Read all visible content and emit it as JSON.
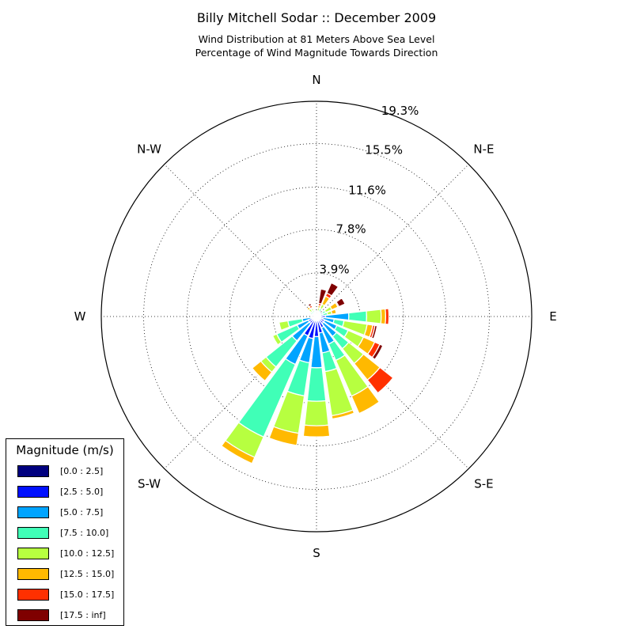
{
  "chart_data": {
    "type": "windrose",
    "title": "Billy Mitchell Sodar :: December 2009",
    "subtitle_line1": "Wind Distribution at 81 Meters Above Sea Level",
    "subtitle_line2": "Percentage of Wind Magnitude Towards Direction",
    "direction_labels": {
      "N": "N",
      "NE": "N-E",
      "E": "E",
      "SE": "S-E",
      "S": "S",
      "SW": "S-W",
      "W": "W",
      "NW": "N-W"
    },
    "radial_ticks": [
      "3.9%",
      "7.8%",
      "11.6%",
      "15.5%",
      "19.3%"
    ],
    "radial_values": [
      3.9,
      7.8,
      11.6,
      15.5,
      19.3
    ],
    "rmax": 19.3,
    "legend": {
      "title": "Magnitude (m/s)",
      "entries": [
        "[0.0 : 2.5]",
        "[2.5 : 5.0]",
        "[5.0 : 7.5]",
        "[7.5 : 10.0]",
        "[10.0 : 12.5]",
        "[12.5 : 15.0]",
        "[15.0 : 17.5]",
        "[17.5 : inf]"
      ],
      "colors": [
        "#00007f",
        "#0010ff",
        "#00a4ff",
        "#40ffb7",
        "#b7ff40",
        "#ffb900",
        "#ff3000",
        "#7f0000"
      ]
    },
    "sector_width_deg": 15,
    "sectors": [
      {
        "dir": 0,
        "pct": [
          0.1,
          0.1
        ]
      },
      {
        "dir": 15,
        "pct": [
          0.1,
          0.1,
          0.2,
          0.1,
          0.3,
          0.2,
          0.2,
          1.3
        ]
      },
      {
        "dir": 30,
        "pct": [
          0.1,
          0.1,
          0.3,
          0.3,
          0.4,
          0.8,
          0.3,
          1.0
        ]
      },
      {
        "dir": 45,
        "pct": [
          0.1,
          0.1,
          0.2,
          0.1
        ]
      },
      {
        "dir": 60,
        "pct": [
          0.1,
          0.2,
          0.3,
          0.3,
          0.6,
          0.6,
          0.1,
          0.6
        ]
      },
      {
        "dir": 75,
        "pct": [
          0.1,
          0.2,
          0.3,
          0.4,
          0.4,
          0.4
        ]
      },
      {
        "dir": 90,
        "pct": [
          0.3,
          0.5,
          2.1,
          1.6,
          1.3,
          0.4,
          0.3
        ]
      },
      {
        "dir": 105,
        "pct": [
          0.2,
          0.4,
          1.0,
          0.9,
          2.1,
          0.5,
          0.2,
          0.2
        ]
      },
      {
        "dir": 120,
        "pct": [
          0.3,
          0.5,
          1.2,
          1.1,
          1.5,
          1.1,
          0.5,
          0.3
        ]
      },
      {
        "dir": 135,
        "pct": [
          0.3,
          0.5,
          1.5,
          1.4,
          1.7,
          1.9,
          1.5
        ]
      },
      {
        "dir": 150,
        "pct": [
          0.3,
          0.8,
          1.6,
          1.6,
          3.5,
          1.7
        ]
      },
      {
        "dir": 165,
        "pct": [
          0.3,
          1.2,
          1.8,
          1.7,
          4.0,
          0.3
        ]
      },
      {
        "dir": 180,
        "pct": [
          0.4,
          1.4,
          2.8,
          3.0,
          2.2,
          1.0
        ]
      },
      {
        "dir": 195,
        "pct": [
          0.4,
          1.6,
          2.2,
          3.0,
          3.4,
          1.1
        ]
      },
      {
        "dir": 210,
        "pct": [
          0.3,
          1.6,
          2.8,
          7.1,
          2.0,
          0.6
        ]
      },
      {
        "dir": 225,
        "pct": [
          0.2,
          0.6,
          2.0,
          3.0,
          0.6,
          1.0
        ]
      },
      {
        "dir": 240,
        "pct": [
          0.2,
          0.6,
          1.1,
          2.0,
          0.4
        ]
      },
      {
        "dir": 255,
        "pct": [
          0.1,
          0.4,
          0.8,
          1.3,
          0.8
        ]
      },
      {
        "dir": 270,
        "pct": [
          0.1,
          0.1
        ]
      },
      {
        "dir": 285,
        "pct": [
          0.1,
          0.1,
          0.1
        ]
      },
      {
        "dir": 300,
        "pct": [
          0.1,
          0.1,
          0.2,
          0.2,
          0.1
        ]
      },
      {
        "dir": 315,
        "pct": [
          0.1,
          0.1,
          0.2,
          0.2,
          0.3,
          0.2
        ]
      },
      {
        "dir": 330,
        "pct": [
          0.1,
          0.1,
          0.2,
          0.2,
          0.2,
          0.1,
          0.2,
          0.2
        ]
      },
      {
        "dir": 345,
        "pct": [
          0.1,
          0.1,
          0.1,
          0.1
        ]
      }
    ]
  }
}
